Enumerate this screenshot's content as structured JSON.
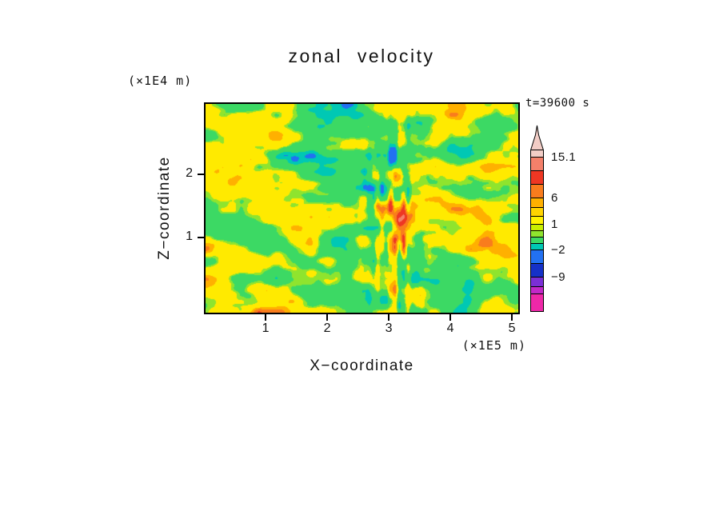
{
  "title": "zonal velocity",
  "annotations": {
    "y_axis_units": "(×1E4 m)",
    "x_axis_units": "(×1E5 m)",
    "time_label": "t=39600 s"
  },
  "axes": {
    "x_label": "X−coordinate",
    "y_label": "Z−coordinate",
    "x_ticks": [
      "1",
      "2",
      "3",
      "4",
      "5"
    ],
    "y_ticks": [
      "2",
      "1"
    ]
  },
  "chart_data": {
    "type": "heatmap",
    "title": "zonal velocity",
    "xlabel": "X-coordinate (×1E5 m)",
    "ylabel": "Z-coordinate (×1E4 m)",
    "time_annotation": "t=39600 s",
    "x_tick_values": [
      1,
      2,
      3,
      4,
      5
    ],
    "y_tick_values": [
      2,
      1
    ],
    "x_range": [
      0,
      5.15
    ],
    "y_range": [
      0,
      3.35
    ],
    "grid": false,
    "legend_position": "right-colorbar",
    "field_description": "Turbulent filled-contour cross-section of zonal velocity: dominant green and yellow patches elongated horizontally, orange/red streaks, scattered dark-blue negative anomalies rimmed with cyan, and a band of fine vertical filaments near x≈3.2E5 m.",
    "colorbar": {
      "top_arrow": true,
      "labels": [
        "15.1",
        "6",
        "1",
        "−2",
        "−9"
      ],
      "label_values": [
        15.1,
        6,
        1,
        -2,
        -9
      ],
      "segments_top_to_bottom": [
        {
          "color": "#f2cdc6",
          "h": 9
        },
        {
          "color": "#f4806a",
          "h": 17
        },
        {
          "color": "#ee3723",
          "h": 17
        },
        {
          "color": "#f97c1d",
          "h": 17
        },
        {
          "color": "#ffb000",
          "h": 12
        },
        {
          "color": "#ffd400",
          "h": 11
        },
        {
          "color": "#fff200",
          "h": 10
        },
        {
          "color": "#c8ee00",
          "h": 8
        },
        {
          "color": "#8fe42e",
          "h": 8
        },
        {
          "color": "#3cd964",
          "h": 8
        },
        {
          "color": "#00c8b4",
          "h": 8
        },
        {
          "color": "#2271f2",
          "h": 17
        },
        {
          "color": "#1531c8",
          "h": 17
        },
        {
          "color": "#7a2fd6",
          "h": 12
        },
        {
          "color": "#c228c8",
          "h": 9
        },
        {
          "color": "#ee28a8",
          "h": 21
        }
      ]
    },
    "field_palette": [
      {
        "max": -6.0,
        "color": "#1531c8"
      },
      {
        "max": -4.0,
        "color": "#2271f2"
      },
      {
        "max": -2.6,
        "color": "#00c8b4"
      },
      {
        "max": 0.5,
        "color": "#3cd964"
      },
      {
        "max": 1.2,
        "color": "#8fe42e"
      },
      {
        "max": 4.2,
        "color": "#ffea00"
      },
      {
        "max": 5.6,
        "color": "#ffb000"
      },
      {
        "max": 7.2,
        "color": "#f97c1d"
      },
      {
        "max": 9.5,
        "color": "#ee3723"
      },
      {
        "max": 99.0,
        "color": "#f4806a"
      }
    ]
  }
}
